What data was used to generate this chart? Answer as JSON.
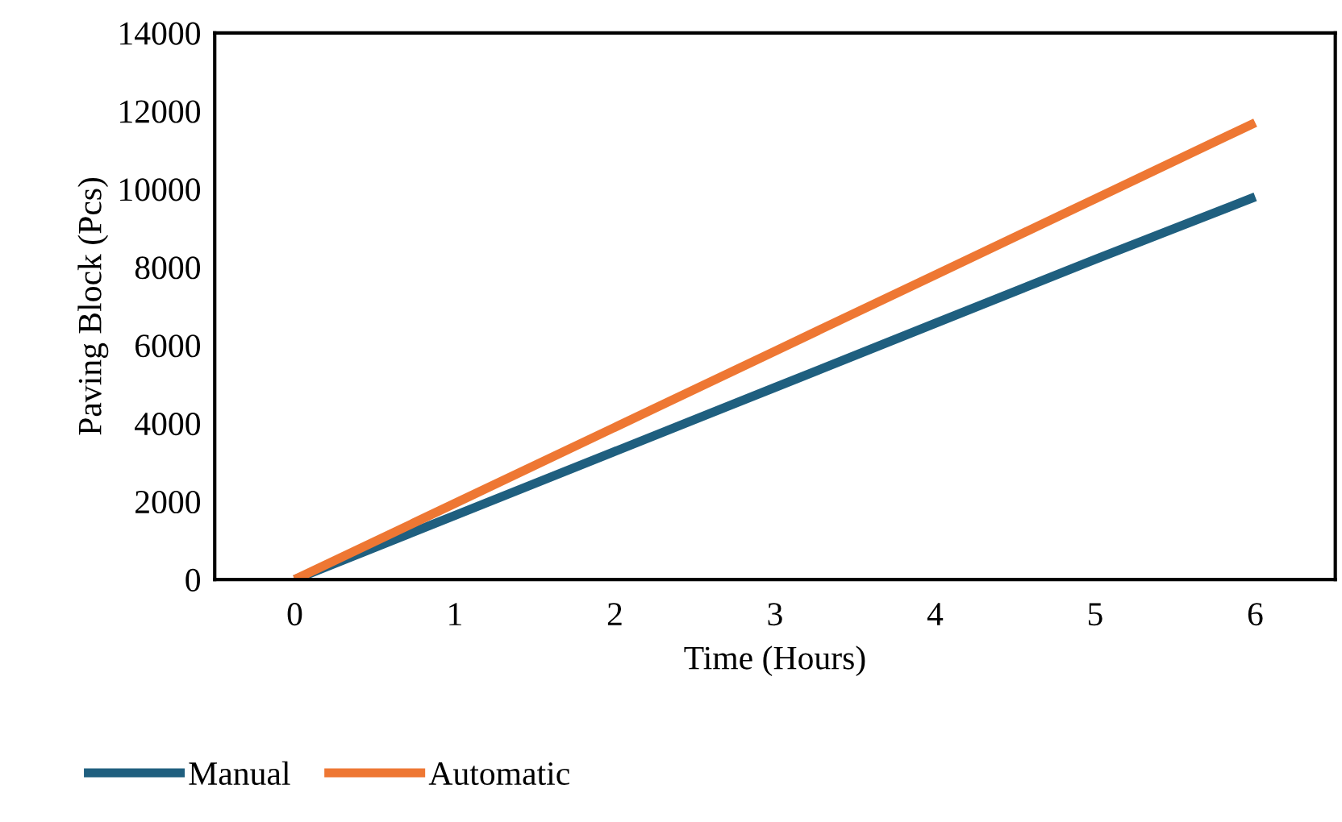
{
  "chart_data": {
    "type": "line",
    "xlabel": "Time (Hours)",
    "ylabel": "Paving Block (Pcs)",
    "categories": [
      "0",
      "1",
      "2",
      "3",
      "4",
      "5",
      "6"
    ],
    "series": [
      {
        "name": "Manual",
        "color": "#1f5f7f",
        "values": [
          0,
          1640,
          3280,
          4920,
          6560,
          8200,
          9800
        ]
      },
      {
        "name": "Automatic",
        "color": "#ee7733",
        "values": [
          0,
          1950,
          3900,
          5850,
          7800,
          9750,
          11700
        ]
      }
    ],
    "ylim": [
      0,
      14000
    ],
    "yticks": [
      0,
      2000,
      4000,
      6000,
      8000,
      10000,
      12000,
      14000
    ],
    "grid": false,
    "legend": "bottom left",
    "marker": "none",
    "line_style": "solid"
  }
}
